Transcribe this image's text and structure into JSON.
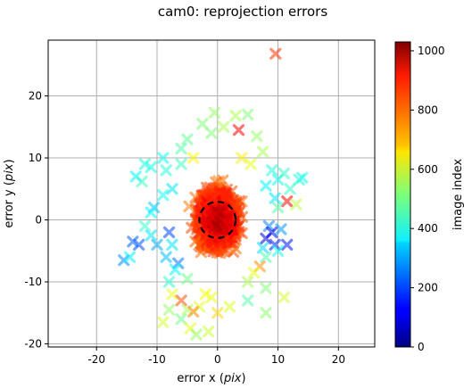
{
  "chart_data": {
    "type": "scatter",
    "title": "cam0: reprojection errors",
    "xlabel_prefix": "error x (",
    "xlabel_unit": "pix",
    "xlabel_suffix": ")",
    "ylabel_prefix": "error y (",
    "ylabel_unit": "pix",
    "ylabel_suffix": ")",
    "xlim": [
      -28,
      26
    ],
    "ylim": [
      -20.5,
      29
    ],
    "xticks": [
      "-20",
      "-10",
      "0",
      "10",
      "20"
    ],
    "xtick_values": [
      -20,
      -10,
      0,
      10,
      20
    ],
    "yticks": [
      "-20",
      "-10",
      "0",
      "10",
      "20"
    ],
    "ytick_values": [
      -20,
      -10,
      0,
      10,
      20
    ],
    "grid": true,
    "marker": "x (filled, alpha 0.5)",
    "colormap": "jet",
    "colorbar": {
      "label": "image index",
      "range": [
        0,
        1030
      ],
      "ticks": [
        "0",
        "200",
        "400",
        "600",
        "800",
        "1000"
      ],
      "tick_values": [
        0,
        200,
        400,
        600,
        800,
        1000
      ]
    },
    "circle": {
      "center": [
        0,
        0
      ],
      "radius": 3,
      "style": "dashed black"
    },
    "points": [
      [
        9.6,
        26.8,
        850
      ],
      [
        5.0,
        17.0,
        520
      ],
      [
        3.0,
        16.8,
        560
      ],
      [
        -0.5,
        17.3,
        540
      ],
      [
        -2.5,
        15.5,
        520
      ],
      [
        1.0,
        15.0,
        560
      ],
      [
        -1.0,
        14.0,
        520
      ],
      [
        3.5,
        14.5,
        900
      ],
      [
        6.5,
        13.5,
        540
      ],
      [
        7.5,
        11.0,
        560
      ],
      [
        -6.0,
        11.5,
        470
      ],
      [
        -5.0,
        13.0,
        490
      ],
      [
        -12.0,
        9.0,
        420
      ],
      [
        -11.0,
        8.5,
        410
      ],
      [
        -9.0,
        10.0,
        400
      ],
      [
        -8.5,
        8.0,
        430
      ],
      [
        -13.5,
        7.0,
        380
      ],
      [
        -12.5,
        6.2,
        450
      ],
      [
        -7.5,
        5.0,
        360
      ],
      [
        -9.0,
        4.0,
        400
      ],
      [
        -10.5,
        2.0,
        330
      ],
      [
        -11.0,
        1.2,
        380
      ],
      [
        -12.0,
        -1.0,
        440
      ],
      [
        -11.0,
        -2.5,
        360
      ],
      [
        -10.0,
        -4.0,
        300
      ],
      [
        -13.0,
        -4.0,
        210
      ],
      [
        -14.0,
        -3.5,
        230
      ],
      [
        -15.5,
        -6.5,
        270
      ],
      [
        -14.5,
        -6.0,
        380
      ],
      [
        -8.0,
        -2.0,
        200
      ],
      [
        -7.5,
        -4.0,
        360
      ],
      [
        -8.5,
        -6.0,
        320
      ],
      [
        -6.5,
        -7.0,
        250
      ],
      [
        -7.0,
        -8.0,
        380
      ],
      [
        -8.0,
        -10.0,
        430
      ],
      [
        9.0,
        8.0,
        420
      ],
      [
        10.0,
        6.5,
        400
      ],
      [
        11.0,
        7.5,
        440
      ],
      [
        13.5,
        6.5,
        430
      ],
      [
        14.0,
        6.8,
        400
      ],
      [
        12.0,
        5.0,
        440
      ],
      [
        8.0,
        5.5,
        380
      ],
      [
        9.5,
        3.5,
        360
      ],
      [
        11.5,
        3.0,
        900
      ],
      [
        13.0,
        2.5,
        580
      ],
      [
        10.0,
        2.0,
        470
      ],
      [
        8.5,
        -1.0,
        260
      ],
      [
        9.0,
        -2.0,
        130
      ],
      [
        10.5,
        -1.5,
        280
      ],
      [
        8.0,
        -3.0,
        90
      ],
      [
        9.5,
        -4.0,
        160
      ],
      [
        11.5,
        -4.0,
        150
      ],
      [
        7.5,
        -4.5,
        350
      ],
      [
        8.0,
        -6.0,
        460
      ],
      [
        10.0,
        -5.0,
        410
      ],
      [
        7.0,
        -7.5,
        760
      ],
      [
        6.0,
        -8.5,
        620
      ],
      [
        11.0,
        -12.5,
        600
      ],
      [
        8.0,
        -11.0,
        520
      ],
      [
        5.0,
        -13.0,
        470
      ],
      [
        8.0,
        -15.0,
        530
      ],
      [
        -7.5,
        -12.0,
        620
      ],
      [
        -8.0,
        -14.5,
        540
      ],
      [
        -6.0,
        -13.0,
        820
      ],
      [
        -5.0,
        -14.5,
        560
      ],
      [
        -9.0,
        -16.5,
        600
      ],
      [
        -6.0,
        -16.0,
        500
      ],
      [
        -4.5,
        -17.5,
        620
      ],
      [
        -3.0,
        -14.0,
        610
      ],
      [
        -1.5,
        -18.0,
        590
      ],
      [
        -3.5,
        -18.5,
        540
      ],
      [
        -4.0,
        -14.8,
        770
      ],
      [
        -2.0,
        -12.0,
        640
      ],
      [
        -6.0,
        9.0,
        450
      ],
      [
        -4.0,
        10.0,
        650
      ],
      [
        4.0,
        10.0,
        660
      ],
      [
        5.5,
        9.0,
        620
      ],
      [
        -5.0,
        -9.5,
        500
      ],
      [
        5.0,
        -10.0,
        560
      ],
      [
        0.0,
        -15.0,
        680
      ],
      [
        2.0,
        -14.0,
        610
      ],
      [
        -1.0,
        -12.5,
        620
      ]
    ],
    "cluster": {
      "center": [
        0,
        0
      ],
      "spread_x": 3.8,
      "spread_y": 5.5,
      "count": 1200,
      "index_range": [
        780,
        1030
      ]
    }
  }
}
